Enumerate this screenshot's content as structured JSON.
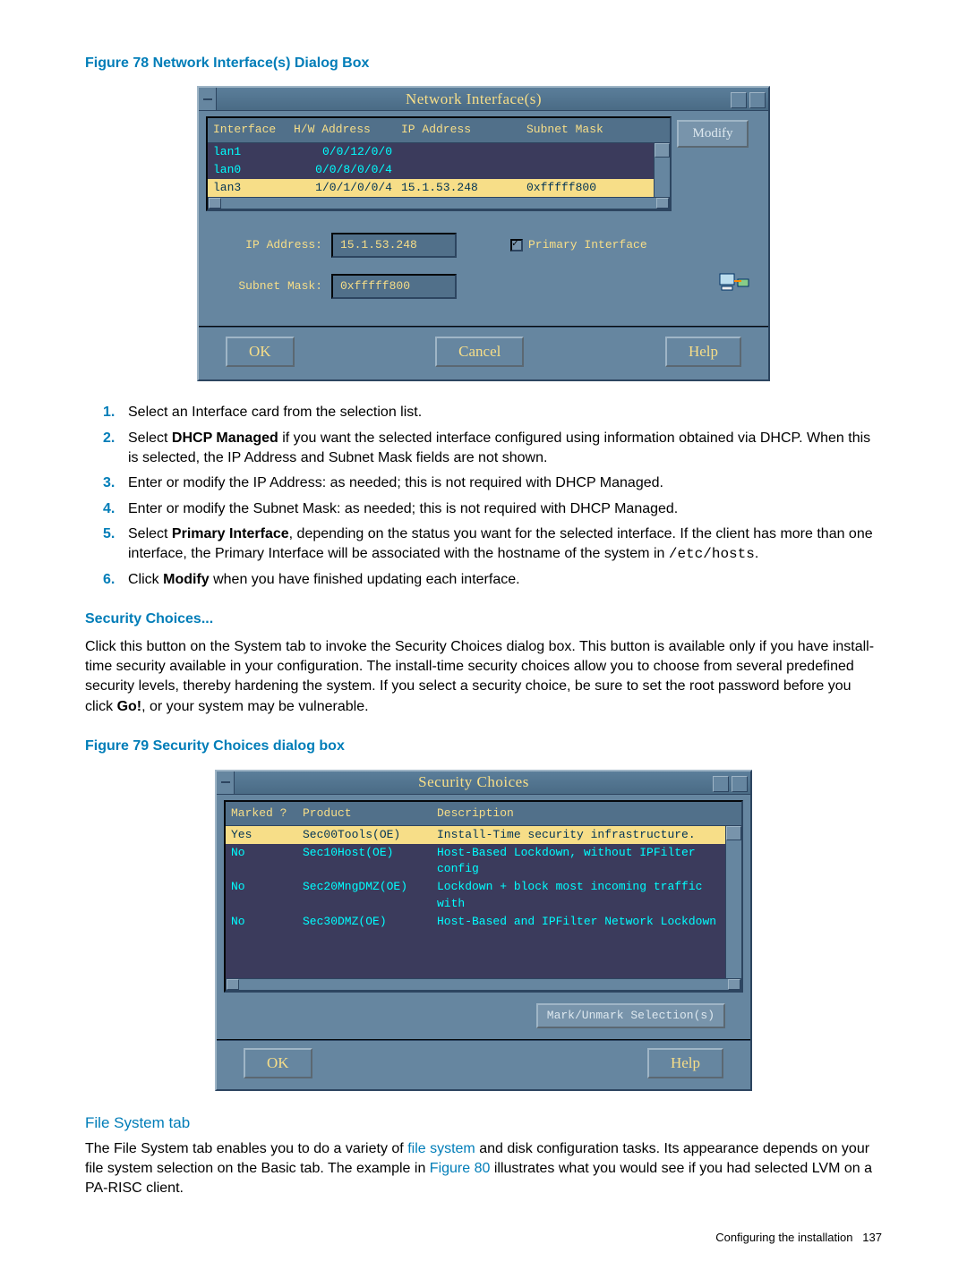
{
  "fig78": {
    "caption": "Figure 78 Network Interface(s) Dialog Box",
    "title": "Network Interface(s)",
    "headers": {
      "iface": "Interface",
      "hw": "H/W Address",
      "ip": "IP Address",
      "mask": "Subnet Mask"
    },
    "rows": [
      {
        "iface": "lan3",
        "hw": "1/0/1/0/0/4",
        "ip": "15.1.53.248",
        "mask": "0xfffff800",
        "sel": true
      },
      {
        "iface": "lan0",
        "hw": "0/0/8/0/0/4",
        "ip": "",
        "mask": ""
      },
      {
        "iface": "lan1",
        "hw": "0/0/12/0/0",
        "ip": "",
        "mask": ""
      }
    ],
    "modify": "Modify",
    "ipLabel": "IP Address:",
    "ipValue": "15.1.53.248",
    "maskLabel": "Subnet Mask:",
    "maskValue": "0xfffff800",
    "checkbox": "Primary Interface",
    "ok": "OK",
    "cancel": "Cancel",
    "help": "Help"
  },
  "steps": [
    "Select an Interface card from the selection list.",
    "Select <b>DHCP Managed</b> if you want the selected interface configured using information obtained via DHCP. When this is selected, the IP Address and Subnet Mask fields are not shown.",
    "Enter or modify the IP Address: as needed; this is not required with DHCP Managed.",
    "Enter or modify the Subnet Mask: as needed; this is not required with DHCP Managed.",
    "Select <b>Primary Interface</b>, depending on the status you want for the selected interface. If the client has more than one interface, the Primary Interface will be associated with the hostname of the system in <span class='mono'>/etc/hosts</span>.",
    "Click <b>Modify</b> when you have finished updating each interface."
  ],
  "sec": {
    "heading": "Security Choices...",
    "para": "Click this button on the System tab to invoke the Security Choices dialog box. This button is available only if you have install-time security available in your configuration. The install-time security choices allow you to choose from several predefined security levels, thereby hardening the system. If you select a security choice, be sure to set the root password before you click <b>Go!</b>, or your system may be vulnerable."
  },
  "fig79": {
    "caption": "Figure 79 Security Choices dialog box",
    "title": "Security Choices",
    "headers": {
      "mark": "Marked ?",
      "prod": "Product",
      "desc": "Description"
    },
    "rows": [
      {
        "mark": "Yes",
        "prod": "Sec00Tools(OE)",
        "desc": "Install-Time security infrastructure.",
        "sel": true
      },
      {
        "mark": "No",
        "prod": "Sec10Host(OE)",
        "desc": "Host-Based Lockdown, without IPFilter config"
      },
      {
        "mark": "No",
        "prod": "Sec20MngDMZ(OE)",
        "desc": "Lockdown + block most incoming traffic with"
      },
      {
        "mark": "No",
        "prod": "Sec30DMZ(OE)",
        "desc": "Host-Based and IPFilter Network Lockdown"
      }
    ],
    "markBtn": "Mark/Unmark Selection(s)",
    "ok": "OK",
    "help": "Help"
  },
  "fs": {
    "heading": "File System tab",
    "p_pre": "The File System tab enables you to do a variety of ",
    "link1": "file system",
    "p_mid": " and disk configuration tasks. Its appearance depends on your file system selection on the Basic tab. The example in ",
    "link2": "Figure 80",
    "p_post": " illustrates what you would see if you had selected LVM on a PA-RISC client."
  },
  "footer": {
    "text": "Configuring the installation",
    "page": "137"
  },
  "colors": {
    "teal": "#007db8",
    "dlgBg": "#6686a0",
    "gold": "#f7de88",
    "cyan": "#00ffff"
  }
}
